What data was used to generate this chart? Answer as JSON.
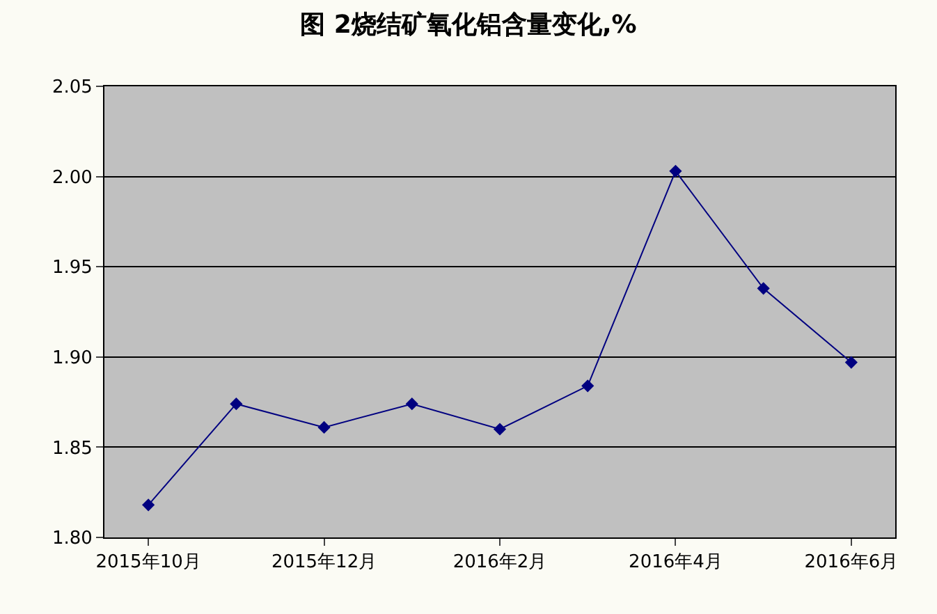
{
  "chart_data": {
    "type": "line",
    "title": "图 2烧结矿氧化铝含量变化,%",
    "categories": [
      "2015年10月",
      null,
      "2015年12月",
      null,
      "2016年2月",
      null,
      "2016年4月",
      null,
      "2016年6月"
    ],
    "series": [
      {
        "color": "#000080",
        "values": [
          1.818,
          1.874,
          1.861,
          1.874,
          1.86,
          1.884,
          2.003,
          1.938,
          1.897
        ]
      }
    ],
    "ylim": [
      1.8,
      2.05
    ],
    "yticks": [
      {
        "value": 1.8,
        "label": "1.80"
      },
      {
        "value": 1.85,
        "label": "1.85"
      },
      {
        "value": 1.9,
        "label": "1.90"
      },
      {
        "value": 1.95,
        "label": "1.95"
      },
      {
        "value": 2.0,
        "label": "2.00"
      },
      {
        "value": 2.05,
        "label": "2.05"
      }
    ],
    "grid": "y",
    "legend": false,
    "marker": "diamond",
    "line_style": "solid"
  }
}
